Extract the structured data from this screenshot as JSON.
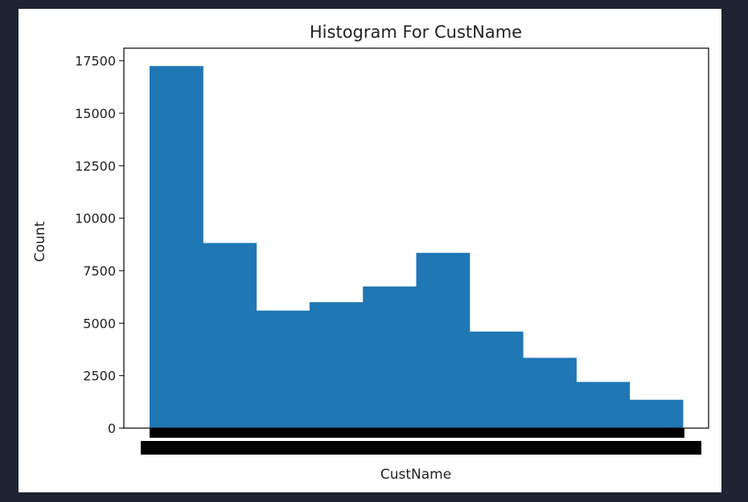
{
  "chart_data": {
    "type": "bar",
    "title": "Histogram For CustName",
    "xlabel": "CustName",
    "ylabel": "Count",
    "ylim": [
      0,
      17500
    ],
    "yticks": [
      0,
      2500,
      5000,
      7500,
      10000,
      12500,
      15000,
      17500
    ],
    "values": [
      17250,
      8820,
      5600,
      6000,
      6750,
      8350,
      4600,
      3350,
      2200,
      1350
    ],
    "grid": false,
    "bar_color": "#1f77b4",
    "overlapping_tick_labels_color": "#000000"
  }
}
